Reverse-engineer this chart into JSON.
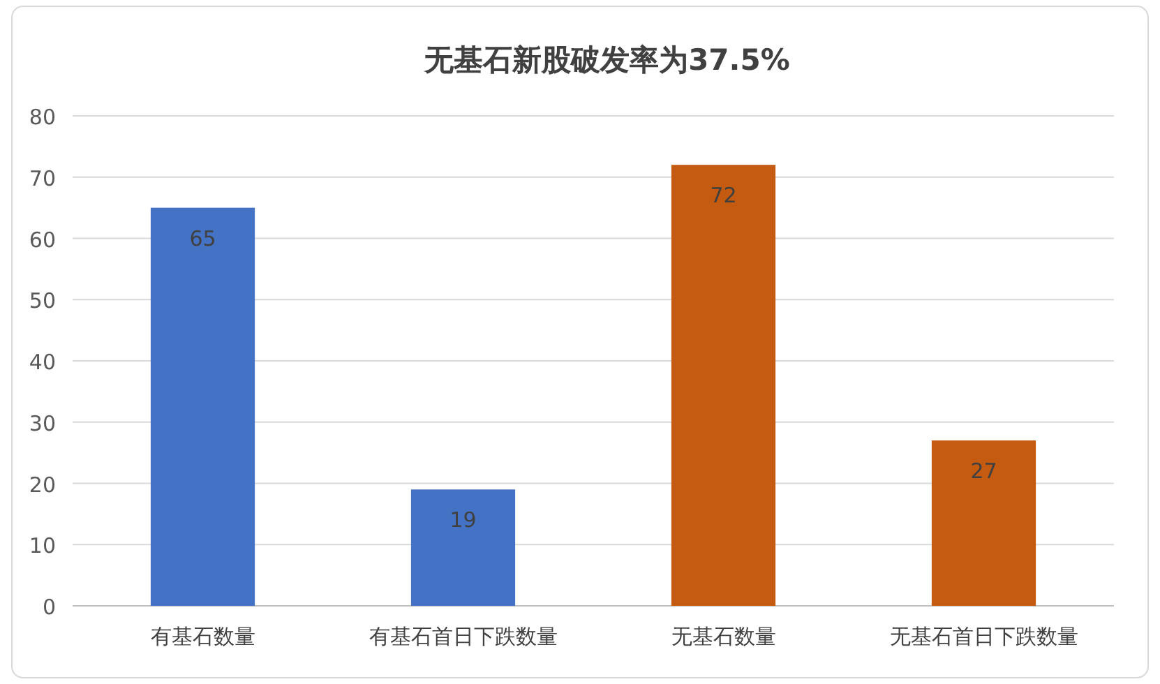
{
  "chart_data": {
    "type": "bar",
    "title": "无基石新股破发率为37.5%",
    "categories": [
      "有基石数量",
      "有基石首日下跌数量",
      "无基石数量",
      "无基石首日下跌数量"
    ],
    "values": [
      65,
      19,
      72,
      27
    ],
    "colors": [
      "#4472c4",
      "#4472c4",
      "#c55a11",
      "#c55a11"
    ],
    "data_labels": true,
    "ylim": [
      0,
      80
    ],
    "yticks": [
      0,
      10,
      20,
      30,
      40,
      50,
      60,
      70,
      80
    ],
    "grid": "y"
  }
}
